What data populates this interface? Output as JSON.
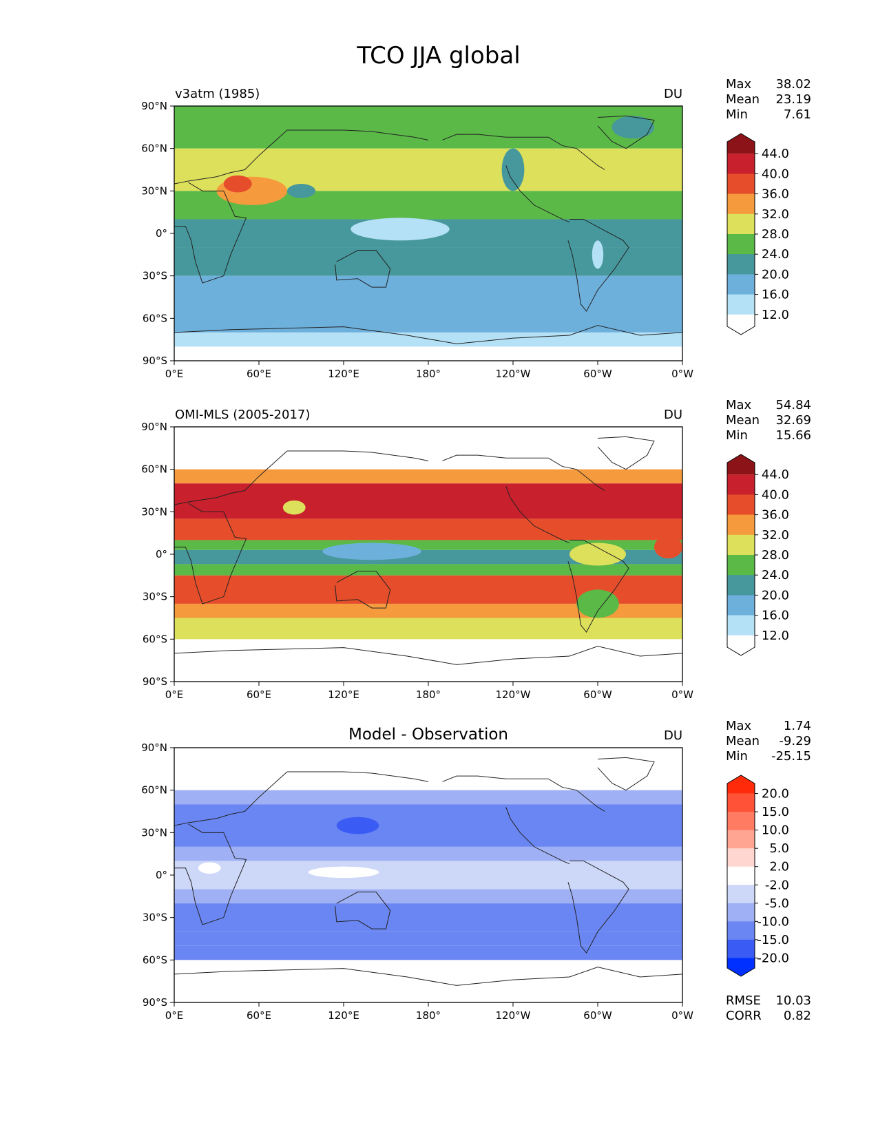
{
  "figure": {
    "title": "TCO JJA global"
  },
  "chart_data": [
    {
      "type": "heatmap",
      "panel_title": "v3atm (1985)",
      "units": "DU",
      "stats": [
        {
          "label": "Max",
          "value": "38.02"
        },
        {
          "label": "Mean",
          "value": "23.19"
        },
        {
          "label": "Min",
          "value": "7.61"
        }
      ],
      "lat_ticks": [
        "90°N",
        "60°N",
        "30°N",
        "0°",
        "30°S",
        "60°S",
        "90°S"
      ],
      "lon_ticks": [
        "0°E",
        "60°E",
        "120°E",
        "180°",
        "120°W",
        "60°W",
        "0°W"
      ],
      "colorbar": {
        "labels": [
          "44.0",
          "40.0",
          "36.0",
          "32.0",
          "28.0",
          "24.0",
          "20.0",
          "16.0",
          "12.0"
        ],
        "colors": [
          "#ffffff",
          "#b4e1f5",
          "#6eb0dc",
          "#46989c",
          "#5bb948",
          "#dde05a",
          "#f69a3e",
          "#e64e2b",
          "#c8202c",
          "#8c1418"
        ]
      },
      "bands": [
        {
          "lat": [
            60,
            90
          ],
          "value": 26
        },
        {
          "lat": [
            30,
            60
          ],
          "value": 28
        },
        {
          "lat": [
            10,
            30
          ],
          "value": 26
        },
        {
          "lat": [
            -10,
            10
          ],
          "value": 21
        },
        {
          "lat": [
            -30,
            -10
          ],
          "value": 21
        },
        {
          "lat": [
            -70,
            -30
          ],
          "value": 18
        },
        {
          "lat": [
            -80,
            -70
          ],
          "value": 15
        },
        {
          "lat": [
            -90,
            -80
          ],
          "value": 10
        }
      ],
      "blobs": [
        {
          "lon": 55,
          "lat": 30,
          "rlon": 25,
          "rlat": 10,
          "value": 34
        },
        {
          "lon": 45,
          "lat": 35,
          "rlon": 10,
          "rlat": 6,
          "value": 37
        },
        {
          "lon": 160,
          "lat": 3,
          "rlon": 35,
          "rlat": 8,
          "value": 14
        },
        {
          "lon": 300,
          "lat": -15,
          "rlon": 4,
          "rlat": 10,
          "value": 14
        },
        {
          "lon": 325,
          "lat": 75,
          "rlon": 15,
          "rlat": 8,
          "value": 22
        },
        {
          "lon": 240,
          "lat": 45,
          "rlon": 8,
          "rlat": 15,
          "value": 22
        },
        {
          "lon": 90,
          "lat": 30,
          "rlon": 10,
          "rlat": 5,
          "value": 22
        }
      ]
    },
    {
      "type": "heatmap",
      "panel_title": "OMI-MLS (2005-2017)",
      "units": "DU",
      "stats": [
        {
          "label": "Max",
          "value": "54.84"
        },
        {
          "label": "Mean",
          "value": "32.69"
        },
        {
          "label": "Min",
          "value": "15.66"
        }
      ],
      "lat_ticks": [
        "90°N",
        "60°N",
        "30°N",
        "0°",
        "30°S",
        "60°S",
        "90°S"
      ],
      "lon_ticks": [
        "0°E",
        "60°E",
        "120°E",
        "180°",
        "120°W",
        "60°W",
        "0°W"
      ],
      "colorbar": {
        "labels": [
          "44.0",
          "40.0",
          "36.0",
          "32.0",
          "28.0",
          "24.0",
          "20.0",
          "16.0",
          "12.0"
        ],
        "colors": [
          "#ffffff",
          "#b4e1f5",
          "#6eb0dc",
          "#46989c",
          "#5bb948",
          "#dde05a",
          "#f69a3e",
          "#e64e2b",
          "#c8202c",
          "#8c1418"
        ]
      },
      "data_lat_range": [
        -60,
        60
      ],
      "bands": [
        {
          "lat": [
            50,
            60
          ],
          "value": 34
        },
        {
          "lat": [
            25,
            50
          ],
          "value": 42
        },
        {
          "lat": [
            10,
            25
          ],
          "value": 37
        },
        {
          "lat": [
            3,
            10
          ],
          "value": 26
        },
        {
          "lat": [
            -7,
            3
          ],
          "value": 21
        },
        {
          "lat": [
            -15,
            -7
          ],
          "value": 27
        },
        {
          "lat": [
            -35,
            -15
          ],
          "value": 36
        },
        {
          "lat": [
            -45,
            -35
          ],
          "value": 33
        },
        {
          "lat": [
            -60,
            -45
          ],
          "value": 29
        }
      ],
      "blobs": [
        {
          "lon": 140,
          "lat": 2,
          "rlon": 35,
          "rlat": 6,
          "value": 18
        },
        {
          "lon": 85,
          "lat": 33,
          "rlon": 8,
          "rlat": 5,
          "value": 29
        },
        {
          "lon": 300,
          "lat": -35,
          "rlon": 15,
          "rlat": 10,
          "value": 26
        },
        {
          "lon": 300,
          "lat": 0,
          "rlon": 20,
          "rlat": 8,
          "value": 28
        },
        {
          "lon": 350,
          "lat": 5,
          "rlon": 10,
          "rlat": 8,
          "value": 38
        }
      ]
    },
    {
      "type": "heatmap",
      "panel_title": "Model - Observation",
      "units": "DU",
      "stats": [
        {
          "label": "Max",
          "value": "1.74"
        },
        {
          "label": "Mean",
          "value": "-9.29"
        },
        {
          "label": "Min",
          "value": "-25.15"
        }
      ],
      "lat_ticks": [
        "90°N",
        "60°N",
        "30°N",
        "0°",
        "30°S",
        "60°S",
        "90°S"
      ],
      "lon_ticks": [
        "0°E",
        "60°E",
        "120°E",
        "180°",
        "120°W",
        "60°W",
        "0°W"
      ],
      "colorbar": {
        "labels": [
          "20.0",
          "15.0",
          "10.0",
          "5.0",
          "2.0",
          "-2.0",
          "-5.0",
          "-10.0",
          "-15.0",
          "-20.0"
        ],
        "colors": [
          "#0030ff",
          "#3a5cf5",
          "#6a86f2",
          "#9fb1f4",
          "#cdd7f8",
          "#ffffff",
          "#ffd7d0",
          "#ffa592",
          "#ff7b62",
          "#ff5236",
          "#ff2a0a"
        ]
      },
      "data_lat_range": [
        -60,
        60
      ],
      "bands": [
        {
          "lat": [
            50,
            60
          ],
          "value": -7
        },
        {
          "lat": [
            20,
            50
          ],
          "value": -13
        },
        {
          "lat": [
            10,
            20
          ],
          "value": -8
        },
        {
          "lat": [
            -10,
            10
          ],
          "value": -4
        },
        {
          "lat": [
            -20,
            -10
          ],
          "value": -9
        },
        {
          "lat": [
            -40,
            -20
          ],
          "value": -13
        },
        {
          "lat": [
            -50,
            -40
          ],
          "value": -11
        },
        {
          "lat": [
            -60,
            -50
          ],
          "value": -14
        }
      ],
      "blobs": [
        {
          "lon": 130,
          "lat": 35,
          "rlon": 15,
          "rlat": 6,
          "value": -17
        },
        {
          "lon": 120,
          "lat": 2,
          "rlon": 25,
          "rlat": 4,
          "value": 0
        },
        {
          "lon": 25,
          "lat": 5,
          "rlon": 8,
          "rlat": 4,
          "value": 0
        }
      ],
      "footer_stats": [
        {
          "label": "RMSE",
          "value": "10.03"
        },
        {
          "label": "CORR",
          "value": "0.82"
        }
      ]
    }
  ]
}
